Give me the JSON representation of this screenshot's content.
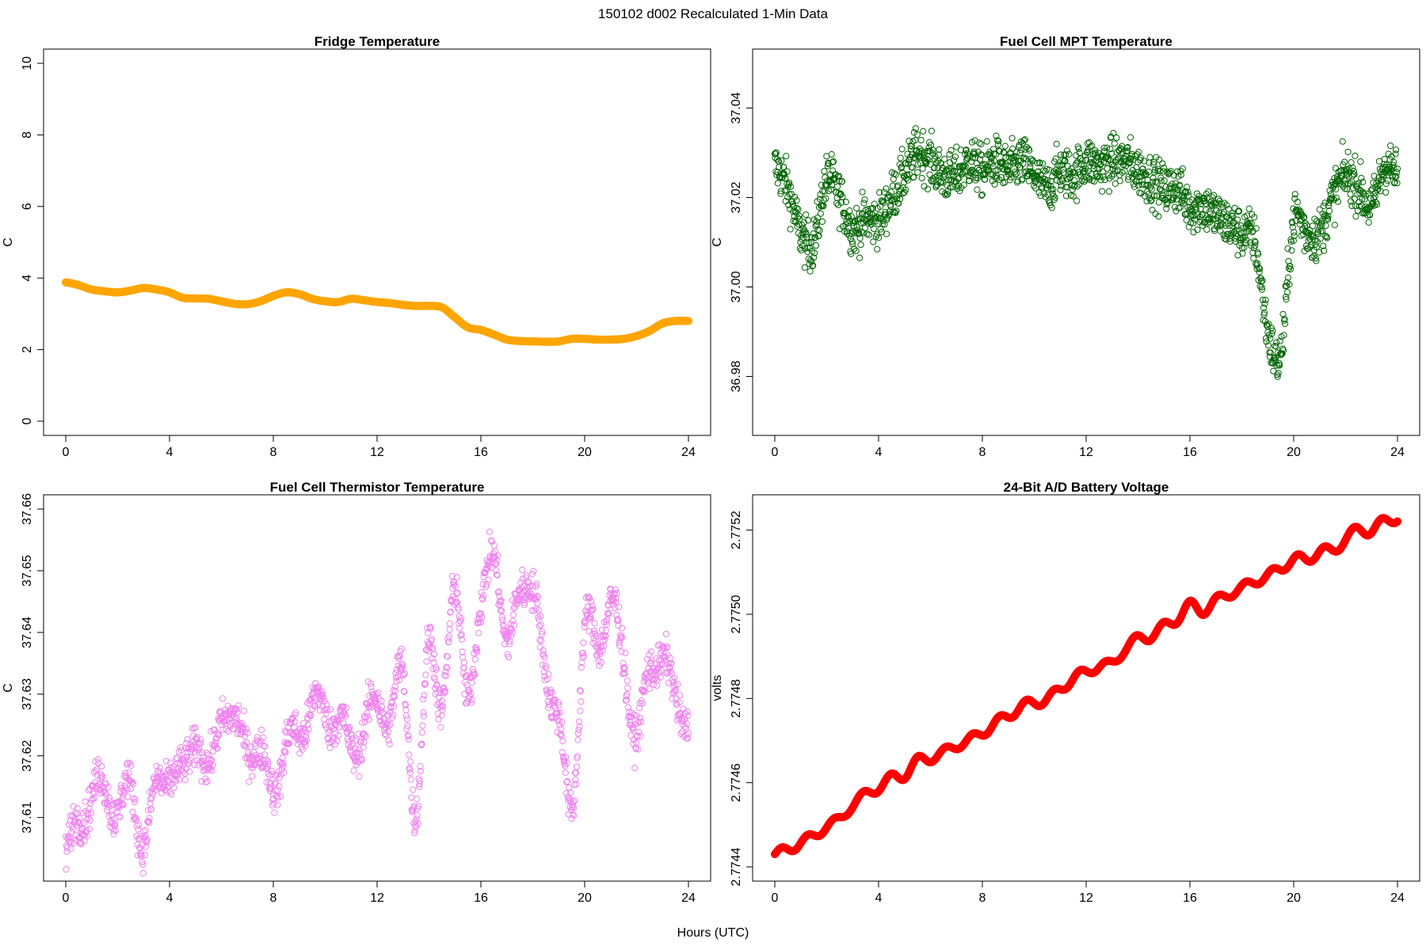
{
  "figure": {
    "title": "150102   d002   Recalculated 1-Min Data",
    "xlabel": "Hours (UTC)"
  },
  "chart_data": [
    {
      "type": "scatter",
      "id": "fridge",
      "title": "Fridge Temperature",
      "xlabel": "Hours (UTC)",
      "ylabel": "C",
      "xlim": [
        0,
        24
      ],
      "ylim": [
        0,
        10
      ],
      "xticks": [
        0,
        4,
        8,
        12,
        16,
        20,
        24
      ],
      "yticks": [
        0,
        2,
        4,
        6,
        8,
        10
      ],
      "color": "#FFA500",
      "marker": "filled",
      "series": [
        {
          "x": [
            0,
            0.5,
            1,
            1.5,
            2,
            2.5,
            3,
            3.5,
            4,
            4.5,
            5,
            5.5,
            6,
            6.5,
            7,
            7.5,
            8,
            8.5,
            9,
            9.5,
            10,
            10.5,
            11,
            11.5,
            12,
            12.5,
            13,
            13.5,
            14,
            14.5,
            15,
            15.5,
            16,
            16.5,
            17,
            17.5,
            18,
            18.5,
            19,
            19.5,
            20,
            20.5,
            21,
            21.5,
            22,
            22.5,
            23,
            23.5,
            24
          ],
          "y": [
            3.88,
            3.8,
            3.68,
            3.63,
            3.6,
            3.65,
            3.72,
            3.68,
            3.6,
            3.45,
            3.43,
            3.42,
            3.35,
            3.28,
            3.27,
            3.35,
            3.5,
            3.6,
            3.55,
            3.42,
            3.35,
            3.33,
            3.42,
            3.38,
            3.33,
            3.3,
            3.25,
            3.22,
            3.22,
            3.18,
            2.9,
            2.62,
            2.55,
            2.42,
            2.28,
            2.24,
            2.23,
            2.22,
            2.23,
            2.3,
            2.3,
            2.28,
            2.28,
            2.3,
            2.38,
            2.52,
            2.73,
            2.8,
            2.8
          ]
        }
      ]
    },
    {
      "type": "scatter",
      "id": "mpt",
      "title": "Fuel Cell MPT Temperature",
      "xlabel": "Hours (UTC)",
      "ylabel": "C",
      "xlim": [
        0,
        24
      ],
      "ylim": [
        36.97,
        37.05
      ],
      "xticks": [
        0,
        4,
        8,
        12,
        16,
        20,
        24
      ],
      "yticks": [
        36.98,
        37.0,
        37.02,
        37.04
      ],
      "ytick_labels": [
        "36.98",
        "37.00",
        "37.02",
        "37.04"
      ],
      "color": "#006400",
      "marker": "open",
      "series": [
        {
          "x": [
            0,
            0.5,
            1,
            1.5,
            2,
            2.5,
            3,
            3.5,
            4,
            4.5,
            5,
            5.5,
            6,
            6.5,
            7,
            7.5,
            8,
            8.5,
            9,
            9.5,
            10,
            10.5,
            11,
            11.5,
            12,
            12.5,
            13,
            13.5,
            14,
            14.5,
            15,
            15.5,
            16,
            16.5,
            17,
            17.5,
            18,
            18.5,
            19,
            19.5,
            20,
            20.5,
            21,
            21.5,
            22,
            22.5,
            23,
            23.5,
            24
          ],
          "y": [
            37.027,
            37.022,
            37.012,
            37.01,
            37.024,
            37.02,
            37.013,
            37.015,
            37.015,
            37.02,
            37.025,
            37.03,
            37.028,
            37.025,
            37.025,
            37.028,
            37.026,
            37.028,
            37.026,
            37.028,
            37.025,
            37.022,
            37.026,
            37.025,
            37.028,
            37.027,
            37.028,
            37.028,
            37.026,
            37.024,
            37.022,
            37.022,
            37.018,
            37.018,
            37.016,
            37.014,
            37.012,
            37.01,
            36.99,
            36.985,
            37.015,
            37.012,
            37.012,
            37.02,
            37.025,
            37.022,
            37.018,
            37.027,
            37.025
          ]
        }
      ]
    },
    {
      "type": "scatter",
      "id": "thermistor",
      "title": "Fuel Cell Thermistor Temperature",
      "xlabel": "Hours (UTC)",
      "ylabel": "C",
      "xlim": [
        0,
        24
      ],
      "ylim": [
        37.602,
        37.66
      ],
      "xticks": [
        0,
        4,
        8,
        12,
        16,
        20,
        24
      ],
      "yticks": [
        37.61,
        37.62,
        37.63,
        37.64,
        37.65,
        37.66
      ],
      "ytick_labels": [
        "37.61",
        "37.62",
        "37.63",
        "37.64",
        "37.65",
        "37.66"
      ],
      "color": "#EE82EE",
      "marker": "open",
      "series": [
        {
          "x": [
            0,
            0.5,
            1,
            1.5,
            2,
            2.5,
            3,
            3.5,
            4,
            4.5,
            5,
            5.5,
            6,
            6.5,
            7,
            7.5,
            8,
            8.5,
            9,
            9.5,
            10,
            10.5,
            11,
            11.5,
            12,
            12.5,
            13,
            13.5,
            14,
            14.5,
            15,
            15.5,
            16,
            16.5,
            17,
            17.5,
            18,
            18.5,
            19,
            19.5,
            20,
            20.5,
            21,
            21.5,
            22,
            22.5,
            23,
            23.5,
            24
          ],
          "y": [
            37.604,
            37.609,
            37.614,
            37.614,
            37.612,
            37.614,
            37.607,
            37.614,
            37.618,
            37.616,
            37.624,
            37.616,
            37.628,
            37.624,
            37.623,
            37.619,
            37.616,
            37.621,
            37.624,
            37.628,
            37.627,
            37.626,
            37.621,
            37.625,
            37.628,
            37.627,
            37.632,
            37.612,
            37.637,
            37.63,
            37.645,
            37.632,
            37.642,
            37.655,
            37.636,
            37.649,
            37.645,
            37.635,
            37.625,
            37.612,
            37.64,
            37.638,
            37.645,
            37.635,
            37.624,
            37.633,
            37.637,
            37.628,
            37.627
          ]
        }
      ]
    },
    {
      "type": "scatter",
      "id": "battery",
      "title": "24-Bit A/D Battery Voltage",
      "xlabel": "Hours (UTC)",
      "ylabel": "volts",
      "xlim": [
        0,
        24
      ],
      "ylim": [
        2.7744,
        2.77525
      ],
      "xticks": [
        0,
        4,
        8,
        12,
        16,
        20,
        24
      ],
      "yticks": [
        2.7744,
        2.7746,
        2.7748,
        2.775,
        2.7752
      ],
      "ytick_labels": [
        "2.7744",
        "2.7746",
        "2.7748",
        "2.7750",
        "2.7752"
      ],
      "color": "#FF0000",
      "marker": "filled",
      "series": [
        {
          "x": [
            0,
            0.5,
            1,
            1.5,
            2,
            2.5,
            3,
            3.5,
            4,
            4.5,
            5,
            5.5,
            6,
            6.5,
            7,
            7.5,
            8,
            8.5,
            9,
            9.5,
            10,
            10.5,
            11,
            11.5,
            12,
            12.5,
            13,
            13.5,
            14,
            14.5,
            15,
            15.5,
            16,
            16.5,
            17,
            17.5,
            18,
            18.5,
            19,
            19.5,
            20,
            20.5,
            21,
            21.5,
            22,
            22.5,
            23,
            23.5,
            24
          ],
          "y": [
            2.77443,
            2.77444,
            2.77446,
            2.77447,
            2.7745,
            2.77451,
            2.77455,
            2.77457,
            2.77459,
            2.77461,
            2.77462,
            2.77465,
            2.77466,
            2.77467,
            2.77469,
            2.7747,
            2.77472,
            2.77474,
            2.77476,
            2.77478,
            2.77479,
            2.7748,
            2.77482,
            2.77485,
            2.77486,
            2.77488,
            2.77488,
            2.77492,
            2.77494,
            2.77495,
            2.77497,
            2.77499,
            2.77502,
            2.77501,
            2.77503,
            2.77505,
            2.77506,
            2.77508,
            2.77509,
            2.77511,
            2.77513,
            2.77513,
            2.77515,
            2.77515,
            2.77518,
            2.7752,
            2.7752,
            2.77522,
            2.77523
          ]
        }
      ]
    }
  ]
}
